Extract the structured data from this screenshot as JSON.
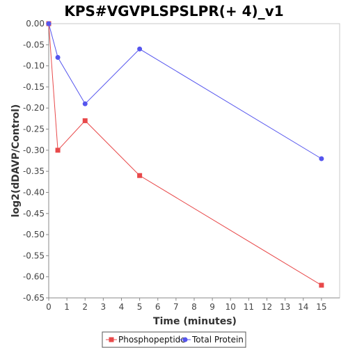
{
  "chart_data": {
    "type": "line",
    "title": "KPS#VGVPLSPSLPR(+ 4)_v1",
    "xlabel": "Time (minutes)",
    "ylabel": "log2(dDAVP/Control)",
    "xlim": [
      0,
      16
    ],
    "ylim": [
      -0.65,
      0.0
    ],
    "x_ticks": [
      0,
      1,
      2,
      3,
      4,
      5,
      6,
      7,
      8,
      9,
      10,
      11,
      12,
      13,
      14,
      15
    ],
    "y_ticks": [
      0.0,
      -0.05,
      -0.1,
      -0.15,
      -0.2,
      -0.25,
      -0.3,
      -0.35,
      -0.4,
      -0.45,
      -0.5,
      -0.55,
      -0.6,
      -0.65
    ],
    "y_tick_labels": [
      "0.00",
      "-0.05",
      "-0.10",
      "-0.15",
      "-0.20",
      "-0.25",
      "-0.30",
      "-0.35",
      "-0.40",
      "-0.45",
      "-0.50",
      "-0.55",
      "-0.60",
      "-0.65"
    ],
    "grid": false,
    "legend_position": "bottom",
    "series": [
      {
        "name": "Phosphopeptide",
        "color": "#e8494a",
        "marker": "square",
        "x": [
          0,
          0.5,
          2,
          5,
          15
        ],
        "y": [
          0.0,
          -0.3,
          -0.23,
          -0.36,
          -0.62
        ]
      },
      {
        "name": "Total Protein",
        "color": "#5555ee",
        "marker": "circle",
        "x": [
          0,
          0.5,
          2,
          5,
          15
        ],
        "y": [
          0.0,
          -0.08,
          -0.19,
          -0.06,
          -0.32
        ]
      }
    ]
  }
}
